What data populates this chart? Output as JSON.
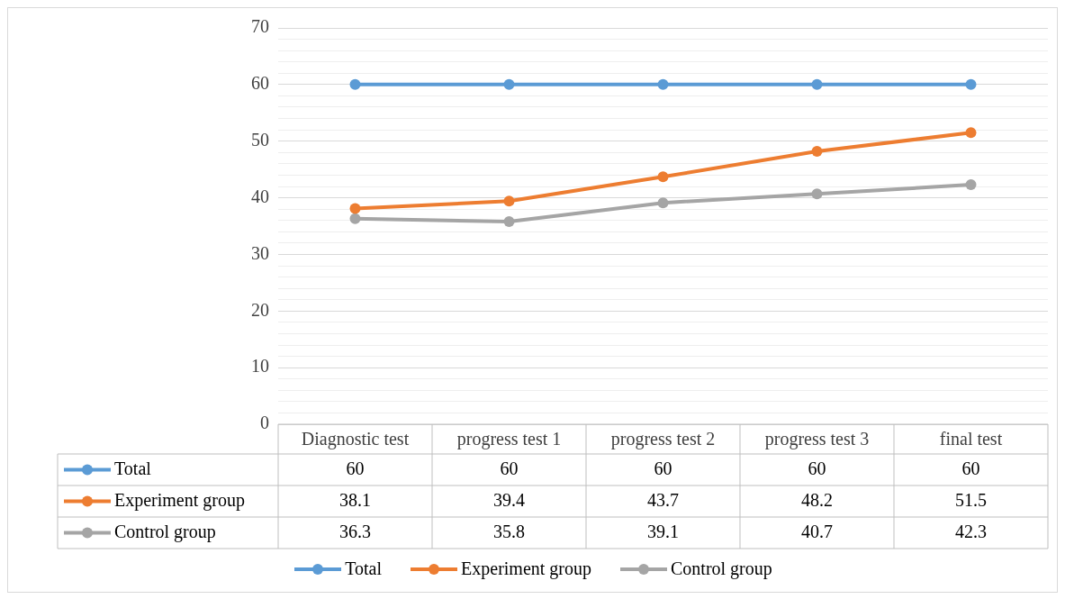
{
  "chart_data": {
    "type": "line",
    "categories": [
      "Diagnostic test",
      "progress test 1",
      "progress test 2",
      "progress test 3",
      "final test"
    ],
    "series": [
      {
        "name": "Total",
        "color": "#5b9bd5",
        "values": [
          60,
          60,
          60,
          60,
          60
        ]
      },
      {
        "name": "Experiment group",
        "color": "#ed7d31",
        "values": [
          38.1,
          39.4,
          43.7,
          48.2,
          51.5
        ]
      },
      {
        "name": "Control group",
        "color": "#a5a5a5",
        "values": [
          36.3,
          35.8,
          39.1,
          40.7,
          42.3
        ]
      }
    ],
    "ylim": [
      0,
      70
    ],
    "yticks": [
      0,
      {
        "value": 2,
        "label": null
      },
      {
        "value": 4,
        "label": null
      },
      {
        "value": 6,
        "label": null
      },
      {
        "value": 8,
        "label": null
      },
      10,
      {
        "value": 12,
        "label": null
      },
      {
        "value": 14,
        "label": null
      },
      {
        "value": 16,
        "label": null
      },
      {
        "value": 18,
        "label": null
      },
      20,
      {
        "value": 22,
        "label": null
      },
      {
        "value": 24,
        "label": null
      },
      {
        "value": 26,
        "label": null
      },
      {
        "value": 28,
        "label": null
      },
      30,
      {
        "value": 32,
        "label": null
      },
      {
        "value": 34,
        "label": null
      },
      {
        "value": 36,
        "label": null
      },
      {
        "value": 38,
        "label": null
      },
      40,
      {
        "value": 42,
        "label": null
      },
      {
        "value": 44,
        "label": null
      },
      {
        "value": 46,
        "label": null
      },
      {
        "value": 48,
        "label": null
      },
      50,
      {
        "value": 52,
        "label": null
      },
      {
        "value": 54,
        "label": null
      },
      {
        "value": 56,
        "label": null
      },
      {
        "value": 58,
        "label": null
      },
      60,
      {
        "value": 62,
        "label": null
      },
      {
        "value": 64,
        "label": null
      },
      {
        "value": 66,
        "label": null
      },
      {
        "value": 68,
        "label": null
      },
      70
    ],
    "grid": "y",
    "legend": "bottom",
    "marker": "circle",
    "line_style": "solid",
    "data_labels": true
  }
}
